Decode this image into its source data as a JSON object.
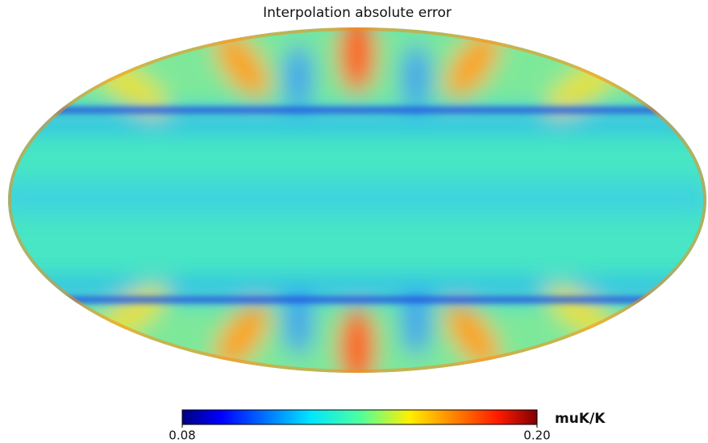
{
  "title": "Interpolation absolute error",
  "colorbar": {
    "lim": [
      0.08,
      0.2
    ],
    "ticks": [
      {
        "value": 0.08,
        "label": "0.08"
      },
      {
        "value": 0.2,
        "label": "0.20"
      }
    ],
    "unit": "muK/K",
    "colormap": "jet"
  }
}
